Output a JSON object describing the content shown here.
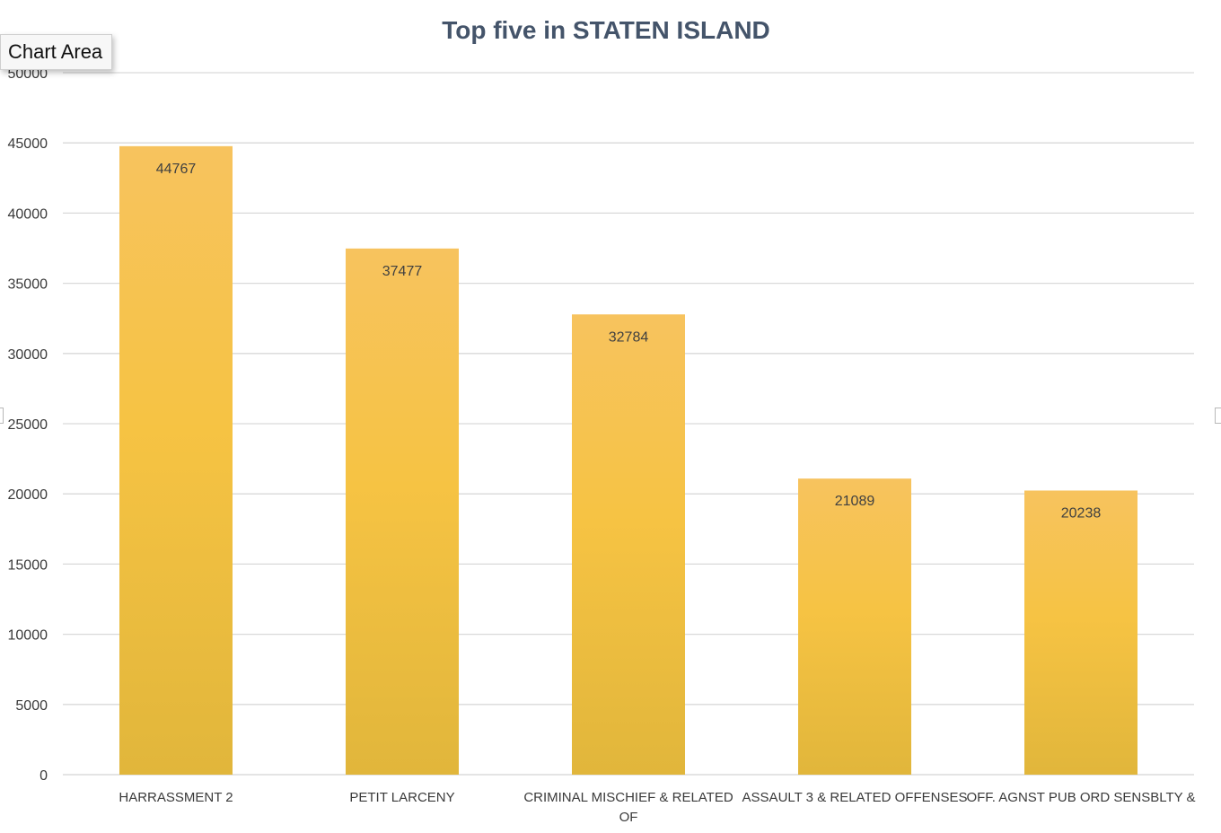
{
  "tooltip": {
    "text": "Chart Area"
  },
  "colors": {
    "bar_top": "#f7c35e",
    "bar_mid": "#f6c343",
    "bar_bottom": "#e1b63b",
    "gridline": "#d9d9d9",
    "title": "#44546a",
    "axis_text": "#3a3a3a"
  },
  "chart_data": {
    "type": "bar",
    "title": "Top five in STATEN ISLAND",
    "xlabel": "",
    "ylabel": "",
    "ylim": [
      0,
      50000
    ],
    "yticks": [
      0,
      5000,
      10000,
      15000,
      20000,
      25000,
      30000,
      35000,
      40000,
      45000,
      50000
    ],
    "grid": true,
    "legend": "none",
    "categories": [
      "HARRASSMENT 2",
      "PETIT LARCENY",
      "CRIMINAL MISCHIEF & RELATED OF",
      "ASSAULT 3 & RELATED OFFENSES",
      "OFF. AGNST PUB ORD SENSBLTY &"
    ],
    "category_label_lines": [
      [
        "HARRASSMENT 2"
      ],
      [
        "PETIT LARCENY"
      ],
      [
        "CRIMINAL MISCHIEF & RELATED",
        "OF"
      ],
      [
        "ASSAULT 3 & RELATED OFFENSES"
      ],
      [
        "OFF. AGNST PUB ORD SENSBLTY &"
      ]
    ],
    "values": [
      44767,
      37477,
      32784,
      21089,
      20238
    ],
    "data_labels": [
      "44767",
      "37477",
      "32784",
      "21089",
      "20238"
    ]
  }
}
